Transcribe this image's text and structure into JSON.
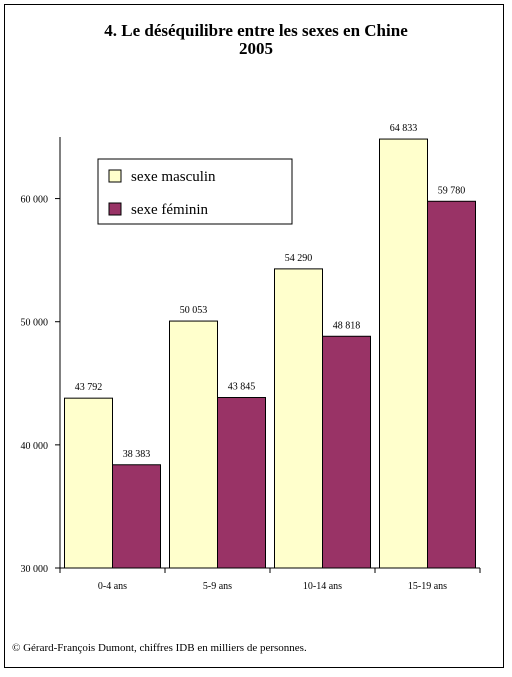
{
  "title": "4. Le déséquilibre entre les sexes en Chine",
  "subtitle": "2005",
  "credit": "© Gérard-François Dumont, chiffres IDB en milliers de personnes.",
  "colors": {
    "male": "#ffffcc",
    "female": "#993366"
  },
  "chart_data": {
    "type": "bar",
    "categories": [
      "0-4 ans",
      "5-9 ans",
      "10-14 ans",
      "15-19 ans"
    ],
    "series": [
      {
        "name": "sexe masculin",
        "values": [
          43792,
          50053,
          54290,
          64833
        ],
        "labels": [
          "43 792",
          "50 053",
          "54 290",
          "64 833"
        ]
      },
      {
        "name": "sexe féminin",
        "values": [
          38383,
          43845,
          48818,
          59780
        ],
        "labels": [
          "38 383",
          "43 845",
          "48 818",
          "59 780"
        ]
      }
    ],
    "ylim": [
      30000,
      65000
    ],
    "yticks": [
      30000,
      40000,
      50000,
      60000
    ],
    "ytick_labels": [
      "30 000",
      "40 000",
      "50 000",
      "60 000"
    ],
    "legend_position": "top-left",
    "grid": false
  }
}
